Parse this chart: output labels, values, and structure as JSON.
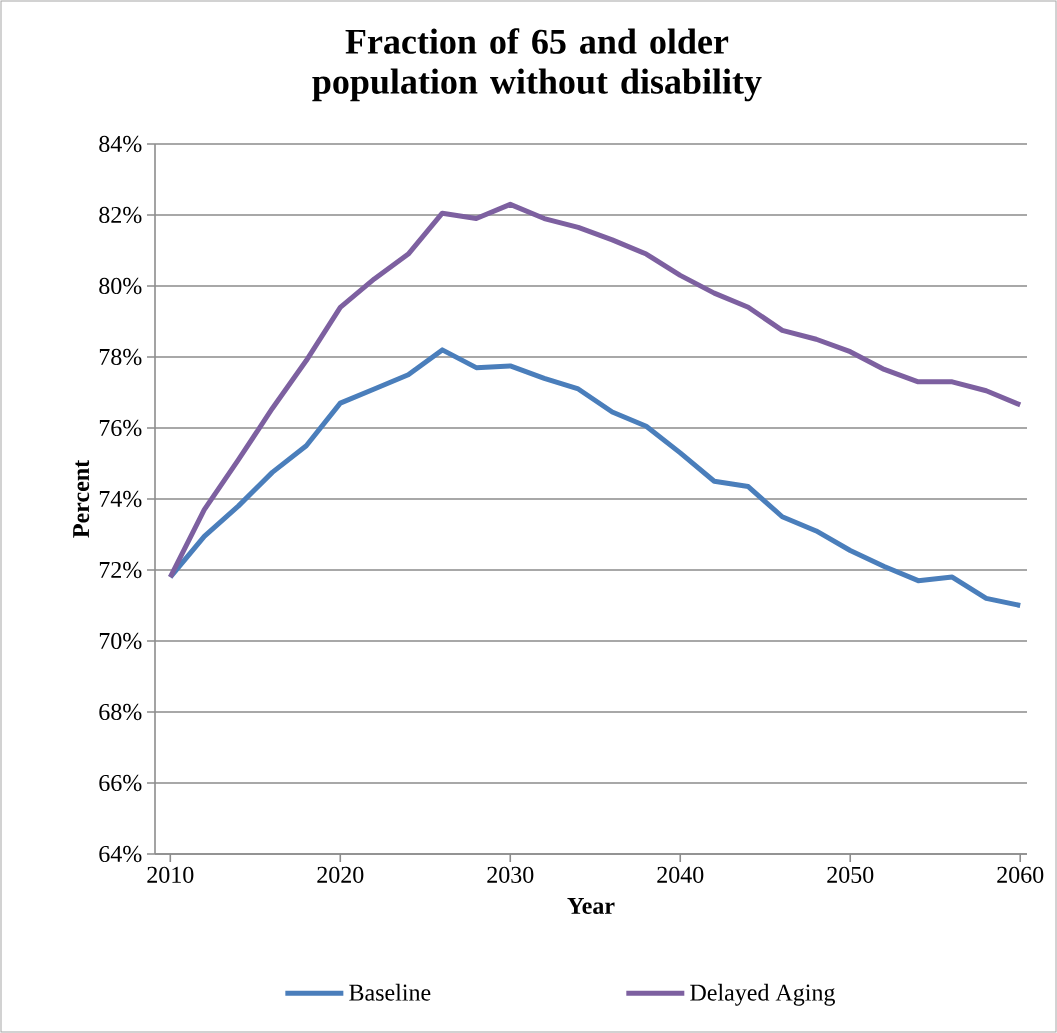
{
  "chart_data": {
    "type": "line",
    "title": "Fraction of 65 and older population without disability",
    "xlabel": "Year",
    "ylabel": "Percent",
    "x": [
      2010,
      2012,
      2014,
      2016,
      2018,
      2020,
      2022,
      2024,
      2026,
      2028,
      2030,
      2032,
      2034,
      2036,
      2038,
      2040,
      2042,
      2044,
      2046,
      2048,
      2050,
      2052,
      2054,
      2056,
      2058,
      2060
    ],
    "series": [
      {
        "name": "Baseline",
        "color": "#4a7ebb",
        "values": [
          71.8,
          72.95,
          73.8,
          74.75,
          75.5,
          76.7,
          77.1,
          77.5,
          78.2,
          77.7,
          77.75,
          77.4,
          77.1,
          76.45,
          76.05,
          75.3,
          74.5,
          74.35,
          73.5,
          73.1,
          72.55,
          72.1,
          71.7,
          71.8,
          71.2,
          71.0
        ]
      },
      {
        "name": "Delayed Aging",
        "color": "#7d60a0",
        "values": [
          71.8,
          73.7,
          75.1,
          76.55,
          77.9,
          79.4,
          80.2,
          80.9,
          82.05,
          81.9,
          82.3,
          81.9,
          81.65,
          81.3,
          80.9,
          80.3,
          79.8,
          79.4,
          78.75,
          78.5,
          78.15,
          77.65,
          77.3,
          77.3,
          77.05,
          76.65
        ]
      }
    ],
    "xlim": [
      2009.1,
      2060.4
    ],
    "ylim": [
      64,
      84
    ],
    "xticks": [
      2010,
      2020,
      2030,
      2040,
      2050,
      2060
    ],
    "yticks": [
      {
        "value": 64,
        "label": "64%"
      },
      {
        "value": 66,
        "label": "66%"
      },
      {
        "value": 68,
        "label": "68%"
      },
      {
        "value": 70,
        "label": "70%"
      },
      {
        "value": 72,
        "label": "72%"
      },
      {
        "value": 74,
        "label": "74%"
      },
      {
        "value": 76,
        "label": "76%"
      },
      {
        "value": 78,
        "label": "78%"
      },
      {
        "value": 80,
        "label": "80%"
      },
      {
        "value": 82,
        "label": "82%"
      },
      {
        "value": 84,
        "label": "84%"
      }
    ],
    "grid": "y",
    "legend": "bottom",
    "line_style": "solid"
  }
}
